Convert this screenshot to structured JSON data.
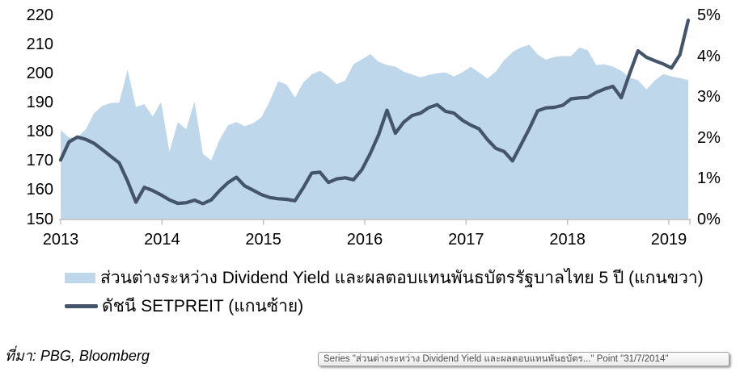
{
  "background": "#ffffff",
  "source_note": "ที่มา: PBG, Bloomberg",
  "tooltip": {
    "text": "Series \"ส่วนต่างระหว่าง Dividend Yield และผลตอบแทนพันธบัตร...\" Point \"31/7/2014\""
  },
  "legend": {
    "items": [
      {
        "label": "ส่วนต่างระหว่าง Dividend Yield และผลตอบแทนพันธบัตรรัฐบาลไทย 5 ปี (แกนขวา)",
        "swatch": "area",
        "color": "#bfd7ea"
      },
      {
        "label": "ดัชนี SETPREIT (แกนซ้าย)",
        "swatch": "line",
        "color": "#44546a"
      }
    ]
  },
  "chart_data": {
    "type": "combo",
    "subtypes": [
      "area",
      "line"
    ],
    "title": "",
    "xlabel": "",
    "ylabel_left": "",
    "ylabel_right": "",
    "grid": false,
    "legend_position": "bottom-left",
    "x_tick_labels": [
      "2013",
      "2014",
      "2015",
      "2016",
      "2017",
      "2018",
      "2019"
    ],
    "x_frequency": "monthly",
    "x_range_note": "Jan 2013 - Apr 2019, 76 monthly points",
    "axes": {
      "left": {
        "min": 150,
        "max": 220,
        "tick_values": [
          220,
          210,
          200,
          190,
          180,
          170,
          160,
          150
        ]
      },
      "right": {
        "min": 0,
        "max": 5,
        "tick_values": [
          5,
          4,
          3,
          2,
          1,
          0
        ],
        "tick_labels": [
          "5%",
          "4%",
          "3%",
          "2%",
          "1%",
          "0%"
        ]
      }
    },
    "series": [
      {
        "name": "ส่วนต่างระหว่าง Dividend Yield และผลตอบแทนพันธบัตรรัฐบาลไทย 5 ปี (แกนขวา)",
        "type": "area",
        "axis": "right",
        "unit": "%",
        "color": "#bfd7ea",
        "values": [
          2.18,
          2.0,
          2.0,
          2.2,
          2.6,
          2.78,
          2.85,
          2.86,
          3.67,
          2.75,
          2.82,
          2.52,
          2.87,
          1.65,
          2.38,
          2.2,
          2.88,
          1.6,
          1.44,
          1.95,
          2.3,
          2.38,
          2.28,
          2.35,
          2.5,
          2.9,
          3.38,
          3.3,
          2.98,
          3.35,
          3.55,
          3.64,
          3.5,
          3.31,
          3.4,
          3.8,
          3.92,
          4.05,
          3.86,
          3.78,
          3.74,
          3.62,
          3.55,
          3.48,
          3.54,
          3.58,
          3.6,
          3.5,
          3.6,
          3.74,
          3.6,
          3.45,
          3.62,
          3.9,
          4.1,
          4.21,
          4.28,
          4.04,
          3.91,
          3.98,
          4.0,
          4.0,
          4.21,
          4.14,
          3.78,
          3.8,
          3.74,
          3.64,
          3.47,
          3.41,
          3.18,
          3.4,
          3.56,
          3.5,
          3.46,
          3.41
        ]
      },
      {
        "name": "ดัชนี SETPREIT (แกนซ้าย)",
        "type": "line",
        "axis": "left",
        "color": "#44546a",
        "values": [
          170.3,
          176.5,
          178.2,
          177.4,
          176.0,
          173.8,
          171.5,
          169.3,
          163.0,
          155.8,
          160.9,
          159.8,
          158.3,
          156.6,
          155.4,
          155.6,
          156.5,
          155.3,
          156.6,
          159.8,
          162.5,
          164.4,
          161.4,
          159.9,
          158.4,
          157.4,
          157.0,
          156.8,
          156.3,
          160.8,
          165.8,
          166.1,
          162.6,
          163.8,
          164.2,
          163.5,
          167.0,
          172.5,
          179.0,
          187.4,
          179.5,
          183.3,
          185.6,
          186.4,
          188.3,
          189.3,
          187.0,
          186.4,
          184.0,
          182.3,
          181.0,
          177.3,
          174.3,
          173.2,
          170.0,
          175.5,
          181.0,
          187.2,
          188.2,
          188.4,
          189.1,
          191.3,
          191.6,
          191.8,
          193.5,
          194.7,
          195.6,
          191.7,
          200.0,
          207.8,
          205.6,
          204.4,
          203.3,
          201.9,
          206.5,
          218.3
        ]
      }
    ],
    "annotations": [
      {
        "kind": "hover-tooltip",
        "text": "Series \"ส่วนต่างระหว่าง Dividend Yield และผลตอบแทนพันธบัตร...\" Point \"31/7/2014\""
      }
    ],
    "axis_color": "#bfbfbf"
  }
}
